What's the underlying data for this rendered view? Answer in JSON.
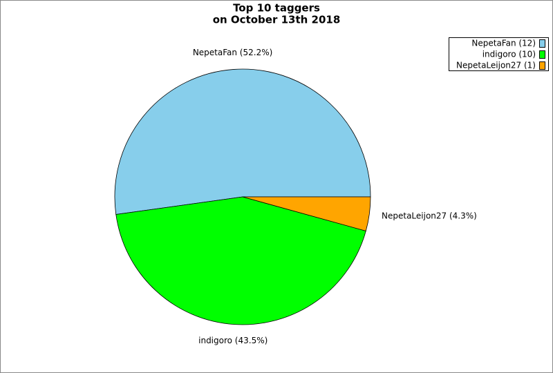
{
  "chart_data": {
    "type": "pie",
    "title": [
      "Top 10 taggers",
      "on October 13th 2018"
    ],
    "categories": [
      "NepetaFan",
      "indigoro",
      "NepetaLeijon27"
    ],
    "values": [
      52.2,
      43.5,
      4.3
    ],
    "value_labels": [
      "NepetaFan (52.2%)",
      "indigoro (43.5%)",
      "NepetaLeijon27 (4.3%)"
    ],
    "legend_labels": [
      "NepetaFan (12)",
      "indigoro (10)",
      "NepetaLeijon27 (1)"
    ],
    "colors": [
      "#87ceeb",
      "#00ff00",
      "#ffa500"
    ],
    "legend": "top-right"
  }
}
